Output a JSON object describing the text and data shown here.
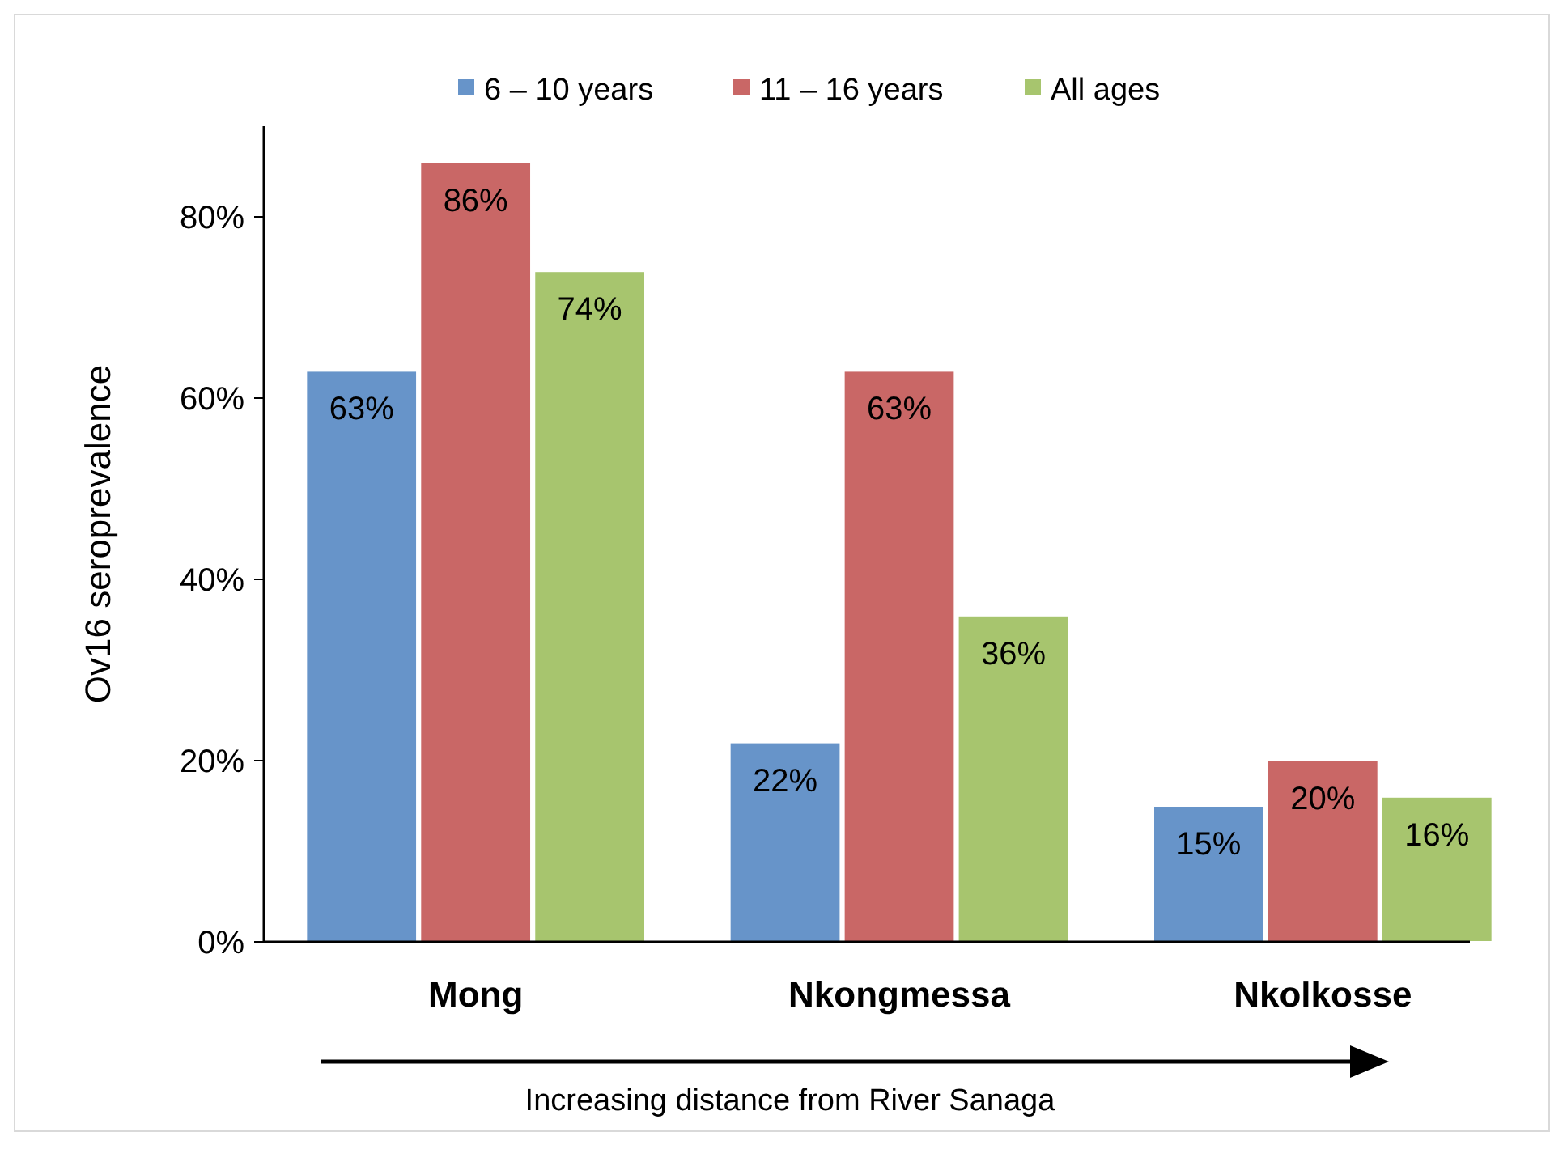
{
  "chart_data": {
    "type": "bar",
    "ylabel": "Ov16 seroprevalence",
    "xlabel": "Increasing distance from River Sanaga",
    "categories": [
      "Mong",
      "Nkongmessa",
      "Nkolkosse"
    ],
    "series": [
      {
        "name": "6 – 10 years",
        "color": "#6794c9",
        "values": [
          63,
          22,
          15
        ],
        "value_labels": [
          "63%",
          "22%",
          "15%"
        ]
      },
      {
        "name": "11 – 16 years",
        "color": "#c96766",
        "values": [
          86,
          63,
          20
        ],
        "value_labels": [
          "86%",
          "63%",
          "20%"
        ]
      },
      {
        "name": "All ages",
        "color": "#a7c56e",
        "values": [
          74,
          36,
          16
        ],
        "value_labels": [
          "74%",
          "36%",
          "16%"
        ]
      }
    ],
    "ylim": [
      0,
      90
    ],
    "yticks": [
      {
        "value": 0,
        "label": "0%"
      },
      {
        "value": 20,
        "label": "20%"
      },
      {
        "value": 40,
        "label": "40%"
      },
      {
        "value": 60,
        "label": "60%"
      },
      {
        "value": 80,
        "label": "80%"
      }
    ],
    "legend": "top",
    "grid": false
  }
}
